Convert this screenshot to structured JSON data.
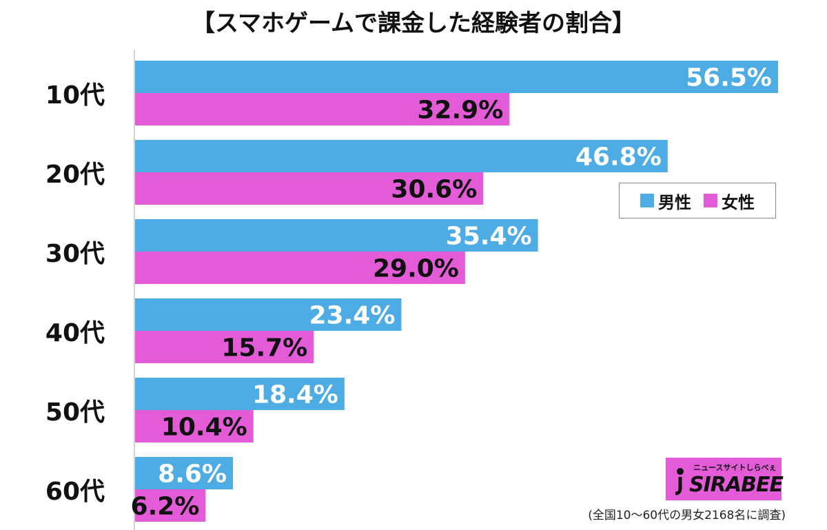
{
  "title": "【スマホゲームで課金した経験者の割合】",
  "legend": {
    "male_label": "男性",
    "female_label": "女性"
  },
  "colors": {
    "male": "#4cace3",
    "female": "#e35bd6",
    "axis": "#aaaaaa"
  },
  "chart_data": {
    "type": "bar",
    "orientation": "horizontal",
    "categories": [
      "10代",
      "20代",
      "30代",
      "40代",
      "50代",
      "60代"
    ],
    "series": [
      {
        "name": "男性",
        "values": [
          56.5,
          46.8,
          35.4,
          23.4,
          18.4,
          8.6
        ],
        "labels": [
          "56.5%",
          "46.8%",
          "35.4%",
          "23.4%",
          "18.4%",
          "8.6%"
        ]
      },
      {
        "name": "女性",
        "values": [
          32.9,
          30.6,
          29.0,
          15.7,
          10.4,
          6.2
        ],
        "labels": [
          "32.9%",
          "30.6%",
          "29.0%",
          "15.7%",
          "10.4%",
          "6.2%"
        ]
      }
    ],
    "xlim": [
      0,
      56.5
    ],
    "legend_position": "right",
    "grid": false
  },
  "logo": {
    "tagline": "ニュースサイトしらべぇ",
    "name": "SIRABEE"
  },
  "footnote": "(全国10〜60代の男女2168名に調査)"
}
